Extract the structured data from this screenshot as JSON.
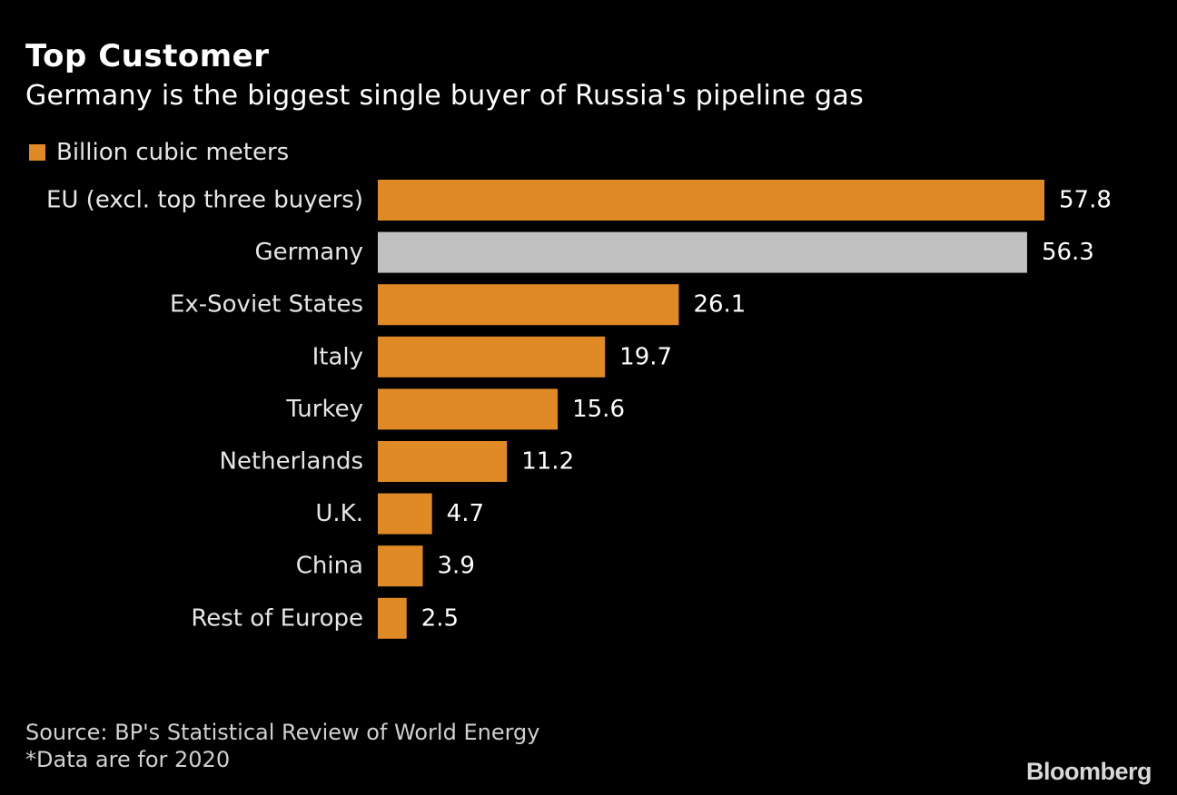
{
  "header": {
    "title": "Top Customer",
    "subtitle": "Germany is the biggest single buyer of Russia's pipeline gas"
  },
  "legend": {
    "label": "Billion cubic meters"
  },
  "colors": {
    "background": "#000000",
    "bar": "#e08a26",
    "highlight": "#c0c0c0"
  },
  "chart_data": {
    "type": "bar",
    "orientation": "horizontal",
    "title": "Top Customer",
    "subtitle": "Germany is the biggest single buyer of Russia's pipeline gas",
    "legend": [
      "Billion cubic meters"
    ],
    "categories": [
      "EU (excl. top three buyers)",
      "Germany",
      "Ex-Soviet States",
      "Italy",
      "Turkey",
      "Netherlands",
      "U.K.",
      "China",
      "Rest of Europe"
    ],
    "values": [
      57.8,
      56.3,
      26.1,
      19.7,
      15.6,
      11.2,
      4.7,
      3.9,
      2.5
    ],
    "value_labels": [
      "57.8",
      "56.3",
      "26.1",
      "19.7",
      "15.6",
      "11.2",
      "4.7",
      "3.9",
      "2.5"
    ],
    "highlighted_category": "Germany",
    "xlim": [
      0,
      57.8
    ],
    "xlabel": "",
    "ylabel": "",
    "grid": false
  },
  "footer": {
    "source": "Source: BP's Statistical Review of World Energy",
    "note": "*Data are for 2020",
    "brand": "Bloomberg"
  }
}
